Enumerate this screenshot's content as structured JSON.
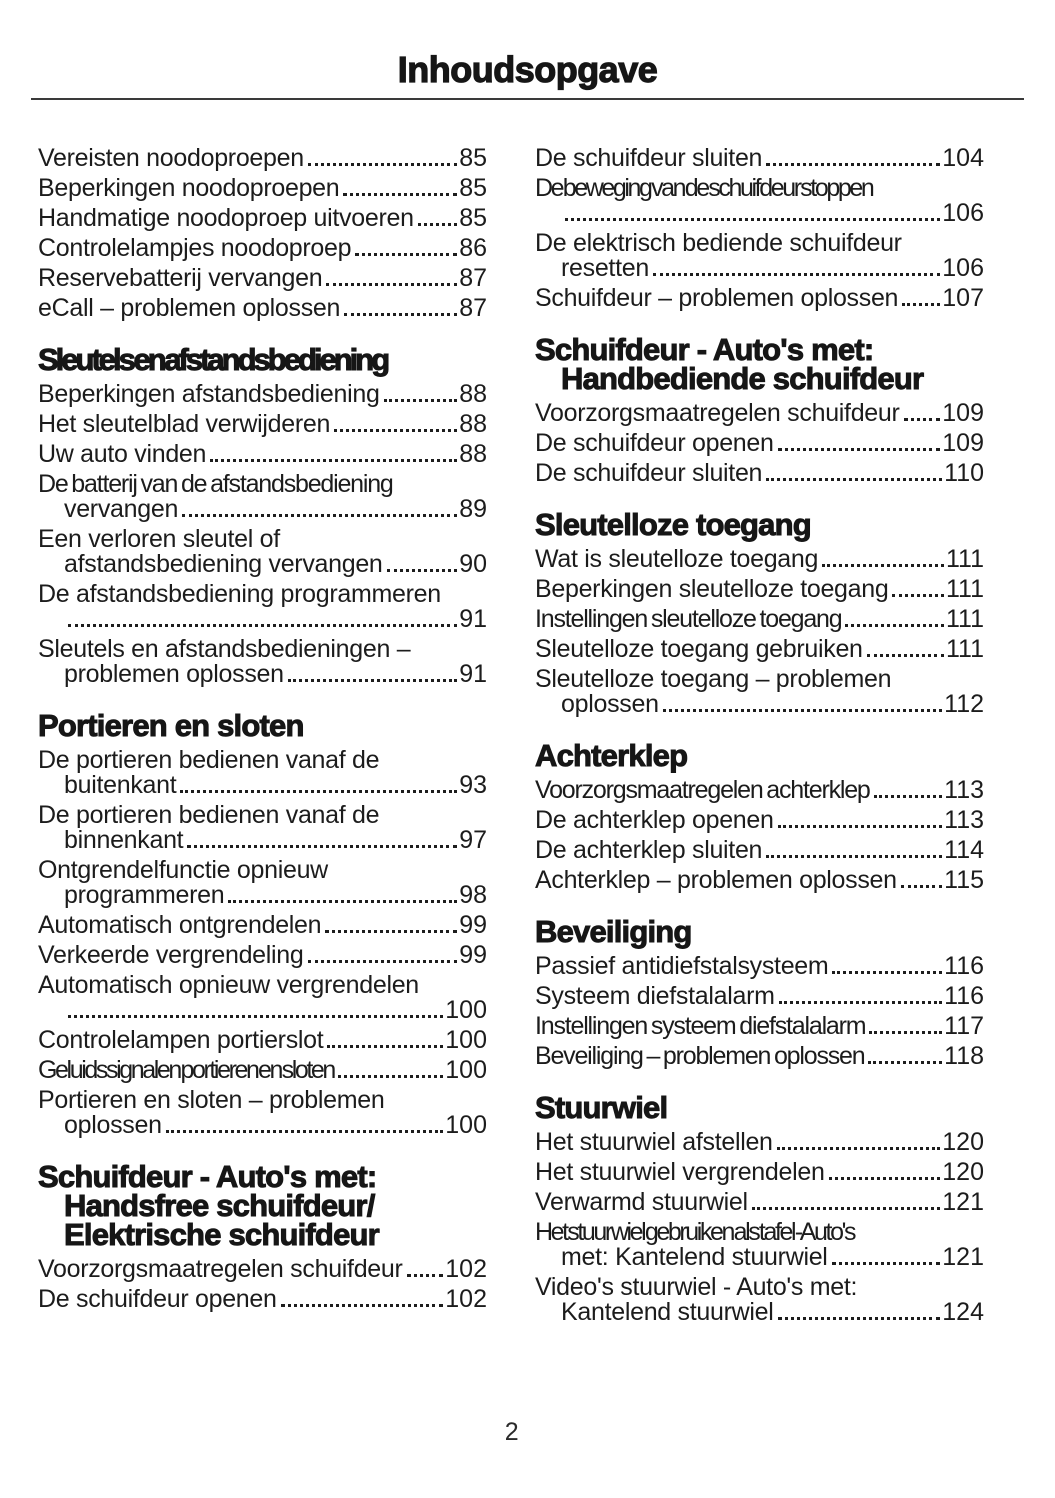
{
  "page": {
    "title": "Inhoudsopgave",
    "footer_page_number": "2"
  },
  "columns": [
    {
      "blocks": [
        {
          "items": [
            {
              "lines": [
                "Vereisten noodoproepen"
              ],
              "page": "85"
            },
            {
              "lines": [
                "Beperkingen noodoproepen"
              ],
              "page": "85"
            },
            {
              "lines": [
                "Handmatige noodoproep uitvoeren"
              ],
              "page": "85"
            },
            {
              "lines": [
                "Controlelampjes noodoproep"
              ],
              "page": "86"
            },
            {
              "lines": [
                "Reservebatterij vervangen"
              ],
              "page": "87"
            },
            {
              "lines": [
                "eCall – problemen oplossen"
              ],
              "page": "87"
            }
          ]
        },
        {
          "heading_lines": [
            "Sleutels en afstandsbediening"
          ],
          "heading_fit": true,
          "items": [
            {
              "lines": [
                "Beperkingen afstandsbediening"
              ],
              "page": "88"
            },
            {
              "lines": [
                "Het sleutelblad verwijderen"
              ],
              "page": "88"
            },
            {
              "lines": [
                "Uw auto vinden"
              ],
              "page": "88"
            },
            {
              "lines": [
                "De batterij van de afstandsbediening",
                "vervangen"
              ],
              "page": "89",
              "fit": 1
            },
            {
              "lines": [
                "Een verloren sleutel of",
                "afstandsbediening vervangen"
              ],
              "page": "90"
            },
            {
              "lines": [
                "De afstandsbediening programmeren",
                ""
              ],
              "page": "91"
            },
            {
              "lines": [
                "Sleutels en afstandsbedieningen –",
                "problemen oplossen"
              ],
              "page": "91"
            }
          ]
        },
        {
          "heading_lines": [
            "Portieren en sloten"
          ],
          "items": [
            {
              "lines": [
                "De portieren bedienen vanaf de",
                "buitenkant"
              ],
              "page": "93"
            },
            {
              "lines": [
                "De portieren bedienen vanaf de",
                "binnenkant"
              ],
              "page": "97"
            },
            {
              "lines": [
                "Ontgrendelfunctie opnieuw",
                "programmeren"
              ],
              "page": "98"
            },
            {
              "lines": [
                "Automatisch ontgrendelen"
              ],
              "page": "99"
            },
            {
              "lines": [
                "Verkeerde vergrendeling"
              ],
              "page": "99"
            },
            {
              "lines": [
                "Automatisch opnieuw vergrendelen",
                ""
              ],
              "page": "100"
            },
            {
              "lines": [
                "Controlelampen portierslot"
              ],
              "page": "100"
            },
            {
              "lines": [
                "Geluidssignalen portieren en sloten"
              ],
              "page": "100",
              "fit": 2
            },
            {
              "lines": [
                "Portieren en sloten – problemen",
                "oplossen"
              ],
              "page": "100"
            }
          ]
        },
        {
          "heading_lines": [
            "Schuifdeur - Auto's met:",
            "Handsfree schuifdeur/",
            "Elektrische schuifdeur"
          ],
          "items": [
            {
              "lines": [
                "Voorzorgsmaatregelen schuifdeur"
              ],
              "page": "102"
            },
            {
              "lines": [
                "De schuifdeur openen"
              ],
              "page": "102"
            }
          ]
        }
      ]
    },
    {
      "blocks": [
        {
          "items": [
            {
              "lines": [
                "De schuifdeur sluiten"
              ],
              "page": "104"
            },
            {
              "lines": [
                "De beweging van de schuifdeur stoppen",
                ""
              ],
              "page": "106",
              "fit": 2
            },
            {
              "lines": [
                "De elektrisch bediende schuifdeur",
                "resetten"
              ],
              "page": "106"
            },
            {
              "lines": [
                "Schuifdeur – problemen oplossen"
              ],
              "page": "107"
            }
          ]
        },
        {
          "heading_lines": [
            "Schuifdeur - Auto's met:",
            "Handbediende schuifdeur"
          ],
          "items": [
            {
              "lines": [
                "Voorzorgsmaatregelen schuifdeur"
              ],
              "page": "109"
            },
            {
              "lines": [
                "De schuifdeur openen"
              ],
              "page": "109"
            },
            {
              "lines": [
                "De schuifdeur sluiten"
              ],
              "page": "110"
            }
          ]
        },
        {
          "heading_lines": [
            "Sleutelloze toegang"
          ],
          "items": [
            {
              "lines": [
                "Wat is sleutelloze toegang"
              ],
              "page": "111"
            },
            {
              "lines": [
                "Beperkingen sleutelloze toegang"
              ],
              "page": "111"
            },
            {
              "lines": [
                "Instellingen sleutelloze toegang"
              ],
              "page": "111",
              "fit": 1
            },
            {
              "lines": [
                "Sleutelloze toegang gebruiken"
              ],
              "page": "111"
            },
            {
              "lines": [
                "Sleutelloze toegang – problemen",
                "oplossen"
              ],
              "page": "112"
            }
          ]
        },
        {
          "heading_lines": [
            "Achterklep"
          ],
          "items": [
            {
              "lines": [
                "Voorzorgsmaatregelen achterklep"
              ],
              "page": "113",
              "fit": 1
            },
            {
              "lines": [
                "De achterklep openen"
              ],
              "page": "113"
            },
            {
              "lines": [
                "De achterklep sluiten"
              ],
              "page": "114"
            },
            {
              "lines": [
                "Achterklep – problemen oplossen"
              ],
              "page": "115"
            }
          ]
        },
        {
          "heading_lines": [
            "Beveiliging"
          ],
          "items": [
            {
              "lines": [
                "Passief antidiefstalsysteem"
              ],
              "page": "116"
            },
            {
              "lines": [
                "Systeem diefstalalarm"
              ],
              "page": "116"
            },
            {
              "lines": [
                "Instellingen systeem diefstalalarm"
              ],
              "page": "117",
              "fit": 1
            },
            {
              "lines": [
                "Beveiliging – problemen oplossen"
              ],
              "page": "118",
              "fit": 1
            }
          ]
        },
        {
          "heading_lines": [
            "Stuurwiel"
          ],
          "items": [
            {
              "lines": [
                "Het stuurwiel afstellen"
              ],
              "page": "120"
            },
            {
              "lines": [
                "Het stuurwiel vergrendelen"
              ],
              "page": "120"
            },
            {
              "lines": [
                "Verwarmd stuurwiel"
              ],
              "page": "121"
            },
            {
              "lines": [
                "Het stuurwiel gebruiken als tafel - Auto's",
                "met: Kantelend stuurwiel"
              ],
              "page": "121",
              "fit": 2
            },
            {
              "lines": [
                "Video's stuurwiel - Auto's met:",
                "Kantelend stuurwiel"
              ],
              "page": "124"
            }
          ]
        }
      ]
    }
  ]
}
